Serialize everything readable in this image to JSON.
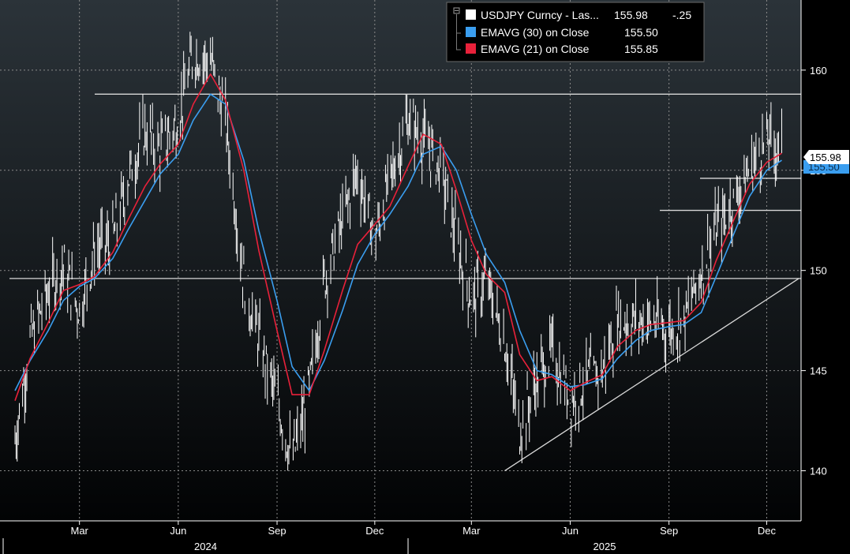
{
  "chart_data": {
    "type": "line",
    "ticker": "USDJPY Curncy",
    "ylim": [
      137.5,
      163.5
    ],
    "y_ticks": [
      140,
      145,
      150,
      155,
      160
    ],
    "x_tick_labels": [
      "Mar",
      "Jun",
      "Sep",
      "Dec",
      "Mar",
      "Jun",
      "Sep",
      "Dec"
    ],
    "year_labels": [
      "2024",
      "2025"
    ],
    "grid": true,
    "legend_position": "top-center",
    "legend": [
      {
        "label": "USDJPY Curncy - Las...",
        "value": "155.98",
        "change": "-.25",
        "color": "#ffffff"
      },
      {
        "label": "EMAVG (30)  on Close",
        "value": "155.50",
        "change": "",
        "color": "#3a9ef0"
      },
      {
        "label": "EMAVG (21)  on Close",
        "value": "155.85",
        "change": "",
        "color": "#e8213a"
      }
    ],
    "last_price_tag": "155.98",
    "ema30_tag": "155.50",
    "x": [
      "2024-01-01",
      "2024-01-15",
      "2024-02-01",
      "2024-02-15",
      "2024-03-01",
      "2024-03-15",
      "2024-04-01",
      "2024-04-15",
      "2024-05-01",
      "2024-05-15",
      "2024-06-01",
      "2024-06-15",
      "2024-07-01",
      "2024-07-15",
      "2024-08-01",
      "2024-08-15",
      "2024-09-01",
      "2024-09-15",
      "2024-10-01",
      "2024-10-15",
      "2024-11-01",
      "2024-11-15",
      "2024-12-01",
      "2024-12-15",
      "2025-01-01",
      "2025-01-15",
      "2025-02-01",
      "2025-02-15",
      "2025-03-01",
      "2025-03-15",
      "2025-04-01",
      "2025-04-15",
      "2025-05-01",
      "2025-05-15",
      "2025-06-01",
      "2025-06-15",
      "2025-07-01",
      "2025-07-15",
      "2025-08-01",
      "2025-08-15",
      "2025-09-01",
      "2025-09-15",
      "2025-10-01",
      "2025-10-15",
      "2025-11-01",
      "2025-11-15",
      "2025-12-01",
      "2025-12-15"
    ],
    "series": [
      {
        "name": "USDJPY Curncy",
        "color": "#ffffff",
        "values": [
          141.5,
          146.5,
          149.0,
          150.2,
          148.0,
          151.0,
          151.5,
          154.5,
          157.0,
          156.0,
          157.5,
          160.8,
          160.5,
          157.5,
          149.5,
          146.5,
          143.5,
          140.5,
          144.0,
          149.5,
          152.5,
          155.0,
          151.5,
          154.5,
          157.5,
          156.5,
          155.0,
          151.5,
          148.5,
          149.5,
          146.5,
          142.0,
          144.5,
          146.0,
          143.5,
          144.5,
          145.0,
          147.5,
          147.5,
          147.5,
          147.0,
          147.5,
          150.0,
          152.0,
          153.5,
          155.0,
          156.5,
          155.98
        ]
      },
      {
        "name": "EMAVG (30)",
        "color": "#3a9ef0",
        "values": [
          144.0,
          145.5,
          147.0,
          148.5,
          149.2,
          149.6,
          150.6,
          152.0,
          153.5,
          154.8,
          155.8,
          157.5,
          158.8,
          158.3,
          155.5,
          152.0,
          148.5,
          145.2,
          144.0,
          145.5,
          148.0,
          150.3,
          151.8,
          152.8,
          154.2,
          155.8,
          156.2,
          155.0,
          152.8,
          150.8,
          149.4,
          147.0,
          145.0,
          144.8,
          144.2,
          144.3,
          144.6,
          145.6,
          146.5,
          147.0,
          147.2,
          147.3,
          147.9,
          149.7,
          151.9,
          153.7,
          155.0,
          155.5
        ]
      },
      {
        "name": "EMAVG (21)",
        "color": "#e8213a",
        "values": [
          143.5,
          145.6,
          147.4,
          149.0,
          149.3,
          149.7,
          150.9,
          152.5,
          154.2,
          155.3,
          156.3,
          158.3,
          159.8,
          158.5,
          155.0,
          151.0,
          147.0,
          143.8,
          143.8,
          146.0,
          149.0,
          151.3,
          152.3,
          153.2,
          155.2,
          156.8,
          156.3,
          154.0,
          151.5,
          149.8,
          148.9,
          145.8,
          144.5,
          144.7,
          144.0,
          144.4,
          144.8,
          146.2,
          147.0,
          147.3,
          147.4,
          147.5,
          148.4,
          150.5,
          152.6,
          154.3,
          155.4,
          155.85
        ]
      }
    ]
  },
  "annotations": {
    "horizontal_levels": [
      158.8,
      149.6,
      153.0,
      154.6
    ],
    "trendline": {
      "from": [
        "2025-04-01",
        140.0
      ],
      "to": [
        "2025-12-31",
        149.6
      ]
    }
  }
}
